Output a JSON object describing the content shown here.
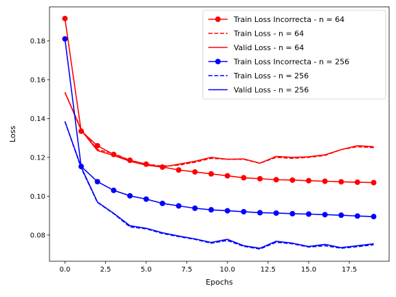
{
  "chart_data": {
    "type": "line",
    "xlabel": "Epochs",
    "ylabel": "Loss",
    "xlim": [
      -0.95,
      19.95
    ],
    "ylim": [
      0.0665,
      0.1975
    ],
    "xticks": [
      0.0,
      2.5,
      5.0,
      7.5,
      10.0,
      12.5,
      15.0,
      17.5
    ],
    "xtick_labels": [
      "0.0",
      "2.5",
      "5.0",
      "7.5",
      "10.0",
      "12.5",
      "15.0",
      "17.5"
    ],
    "yticks": [
      0.08,
      0.1,
      0.12,
      0.14,
      0.16,
      0.18
    ],
    "ytick_labels": [
      "0.08",
      "0.10",
      "0.12",
      "0.14",
      "0.16",
      "0.18"
    ],
    "legend_position": "top-right",
    "x": [
      0,
      1,
      2,
      3,
      4,
      5,
      6,
      7,
      8,
      9,
      10,
      11,
      12,
      13,
      14,
      15,
      16,
      17,
      18,
      19
    ],
    "series": [
      {
        "name": "Train Loss Incorrecta - n = 64",
        "color": "#ff0000",
        "style": "solid",
        "marker": true,
        "values": [
          0.1915,
          0.1335,
          0.126,
          0.1215,
          0.1185,
          0.1165,
          0.115,
          0.1135,
          0.1125,
          0.1115,
          0.1105,
          0.1095,
          0.109,
          0.1085,
          0.1083,
          0.108,
          0.1077,
          0.1074,
          0.1072,
          0.107
        ]
      },
      {
        "name": "Train Loss - n = 64",
        "color": "#ff0000",
        "style": "dashed",
        "marker": false,
        "values": [
          0.1535,
          0.1345,
          0.124,
          0.122,
          0.1185,
          0.1165,
          0.1155,
          0.116,
          0.1175,
          0.1195,
          0.119,
          0.119,
          0.117,
          0.12,
          0.1195,
          0.12,
          0.121,
          0.124,
          0.1255,
          0.125
        ]
      },
      {
        "name": "Valid Loss - n = 64",
        "color": "#ff0000",
        "style": "solid",
        "marker": false,
        "values": [
          0.1535,
          0.134,
          0.1235,
          0.121,
          0.118,
          0.116,
          0.115,
          0.1165,
          0.118,
          0.12,
          0.119,
          0.1192,
          0.117,
          0.1205,
          0.12,
          0.1203,
          0.1213,
          0.124,
          0.126,
          0.1255
        ]
      },
      {
        "name": "Train Loss Incorrecta - n = 256",
        "color": "#0000ff",
        "style": "solid",
        "marker": true,
        "values": [
          0.181,
          0.1153,
          0.1075,
          0.103,
          0.1002,
          0.0985,
          0.0963,
          0.095,
          0.0938,
          0.093,
          0.0925,
          0.092,
          0.0915,
          0.0913,
          0.091,
          0.0908,
          0.0905,
          0.0902,
          0.0898,
          0.0895
        ]
      },
      {
        "name": "Train Loss - n = 256",
        "color": "#0000ff",
        "style": "dashed",
        "marker": false,
        "values": [
          0.1385,
          0.1145,
          0.0968,
          0.091,
          0.0842,
          0.0832,
          0.0808,
          0.0792,
          0.0778,
          0.0758,
          0.0772,
          0.0742,
          0.0728,
          0.0763,
          0.0755,
          0.0738,
          0.0745,
          0.0732,
          0.074,
          0.075
        ]
      },
      {
        "name": "Valid Loss - n = 256",
        "color": "#0000ff",
        "style": "solid",
        "marker": false,
        "values": [
          0.1385,
          0.115,
          0.097,
          0.0912,
          0.0848,
          0.0835,
          0.0812,
          0.0795,
          0.078,
          0.0762,
          0.0778,
          0.0745,
          0.0732,
          0.0768,
          0.0758,
          0.0741,
          0.0752,
          0.0735,
          0.0745,
          0.0755
        ]
      }
    ]
  }
}
